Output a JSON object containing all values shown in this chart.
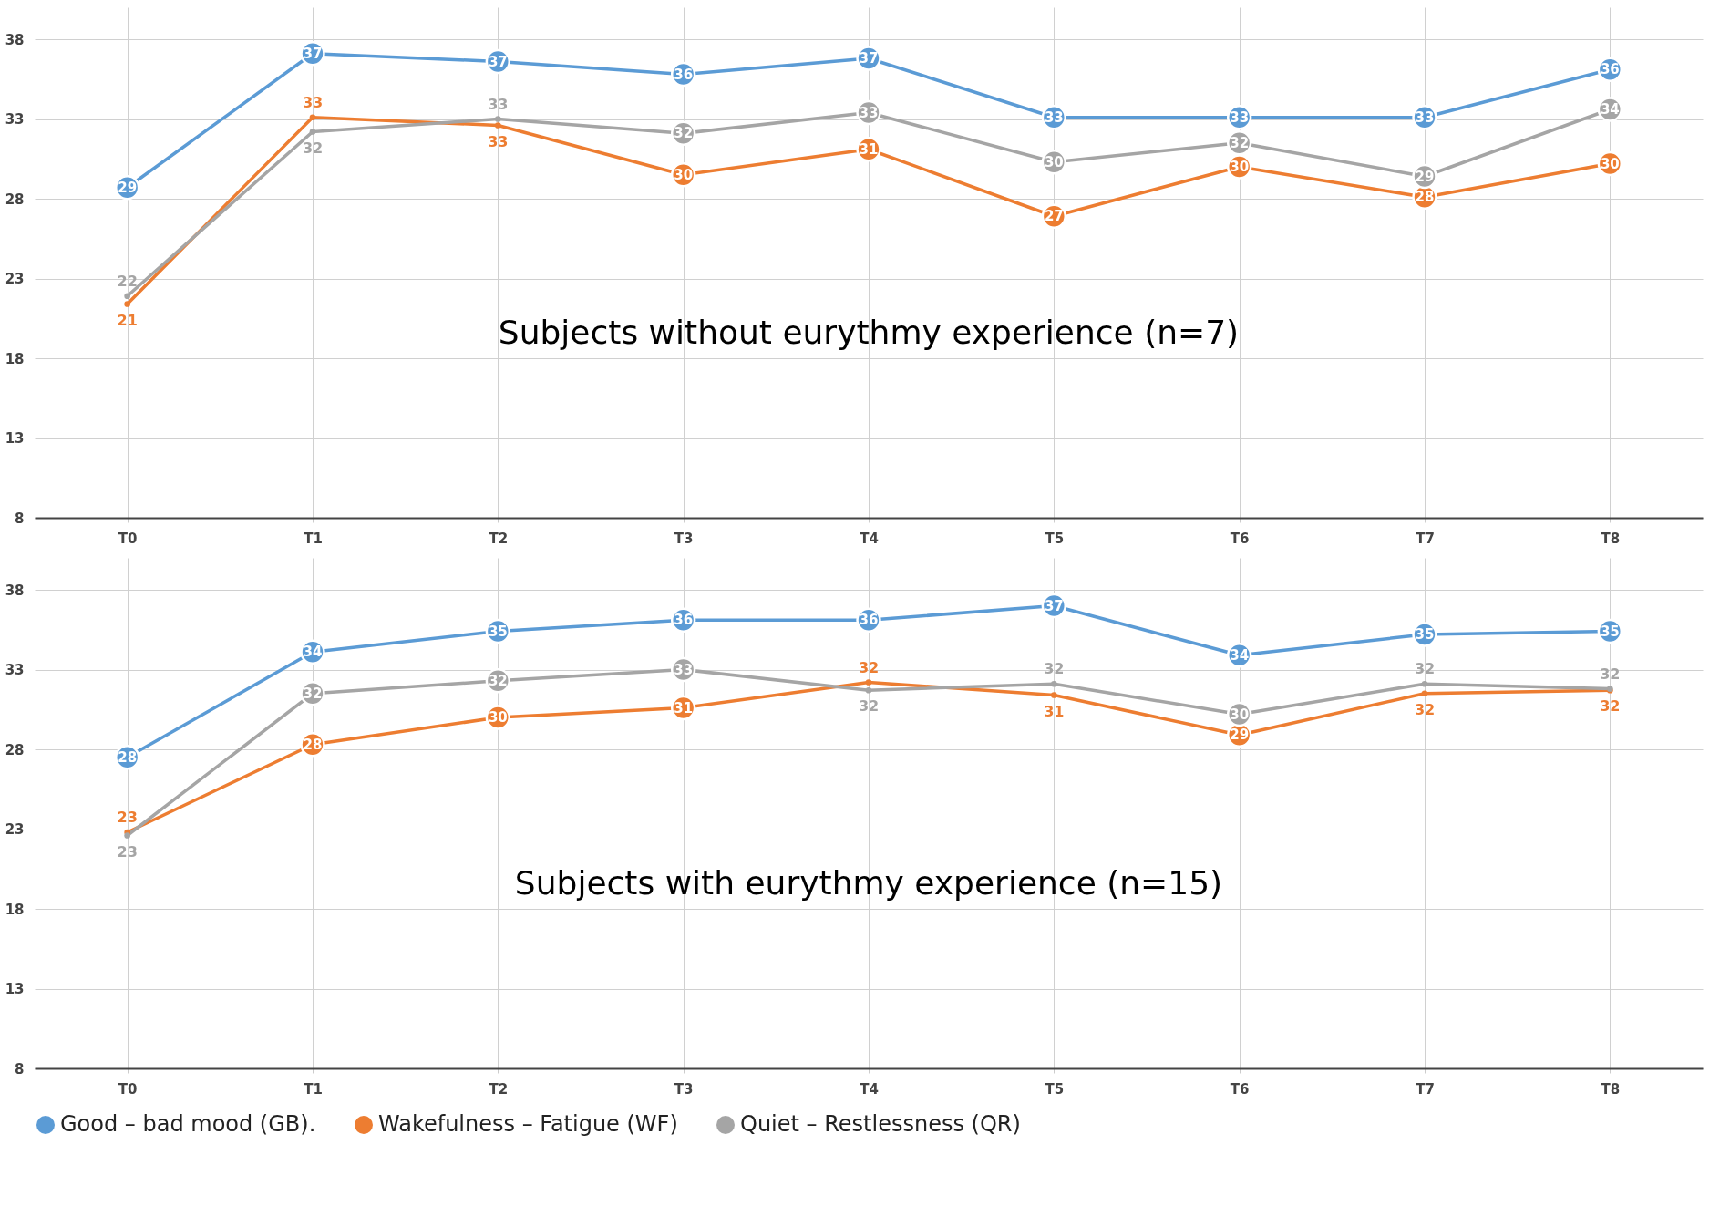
{
  "chart_data": [
    {
      "type": "line",
      "title": "Subjects without eurythmy experience (n=7)",
      "categories": [
        "T0",
        "T1",
        "T2",
        "T3",
        "T4",
        "T5",
        "T6",
        "T7",
        "T8"
      ],
      "ylim": [
        8,
        40
      ],
      "yticks": [
        8,
        13,
        18,
        23,
        28,
        33,
        38
      ],
      "grid": true,
      "marker": "circle",
      "line_style": "solid",
      "series": [
        {
          "color": "#5b9bd5",
          "values": [
            28.7,
            37.1,
            36.6,
            35.8,
            36.8,
            33.1,
            33.1,
            33.1,
            36.1
          ],
          "value_labels": [
            "29",
            "37",
            "37",
            "36",
            "37",
            "33",
            "33",
            "33",
            "36"
          ]
        },
        {
          "color": "#ed7d31",
          "values": [
            21.4,
            33.1,
            32.6,
            29.5,
            31.1,
            26.9,
            30.0,
            28.1,
            30.2
          ],
          "value_labels": [
            "21",
            "33",
            "33",
            "30",
            "31",
            "27",
            "30",
            "28",
            "30"
          ]
        },
        {
          "color": "#a5a5a5",
          "values": [
            21.9,
            32.2,
            33.0,
            32.1,
            33.4,
            30.3,
            31.5,
            29.4,
            33.6
          ],
          "value_labels": [
            "22",
            "32",
            "33",
            "32",
            "33",
            "30",
            "32",
            "29",
            "34"
          ]
        }
      ]
    },
    {
      "type": "line",
      "title": "Subjects with eurythmy experience (n=15)",
      "categories": [
        "T0",
        "T1",
        "T2",
        "T3",
        "T4",
        "T5",
        "T6",
        "T7",
        "T8"
      ],
      "ylim": [
        8,
        40
      ],
      "yticks": [
        8,
        13,
        18,
        23,
        28,
        33,
        38
      ],
      "grid": true,
      "legend": "bottom",
      "marker": "circle",
      "line_style": "solid",
      "series": [
        {
          "name": "Good – bad mood (GB).",
          "color": "#5b9bd5",
          "values": [
            27.5,
            34.1,
            35.4,
            36.1,
            36.1,
            37.0,
            33.9,
            35.2,
            35.4
          ],
          "value_labels": [
            "28",
            "34",
            "35",
            "36",
            "36",
            "37",
            "34",
            "35",
            "35"
          ]
        },
        {
          "name": "Wakefulness – Fatigue (WF)",
          "color": "#ed7d31",
          "values": [
            22.8,
            28.3,
            30.0,
            30.6,
            32.2,
            31.4,
            28.9,
            31.5,
            31.7
          ],
          "value_labels": [
            "23",
            "28",
            "30",
            "31",
            "32",
            "31",
            "29",
            "32",
            "32"
          ]
        },
        {
          "name": "Quiet – Restlessness (QR)",
          "color": "#a5a5a5",
          "values": [
            22.6,
            31.5,
            32.3,
            33.0,
            31.7,
            32.1,
            30.2,
            32.1,
            31.8
          ],
          "value_labels": [
            "23",
            "32",
            "32",
            "33",
            "32",
            "32",
            "30",
            "32",
            "32"
          ]
        }
      ]
    }
  ]
}
